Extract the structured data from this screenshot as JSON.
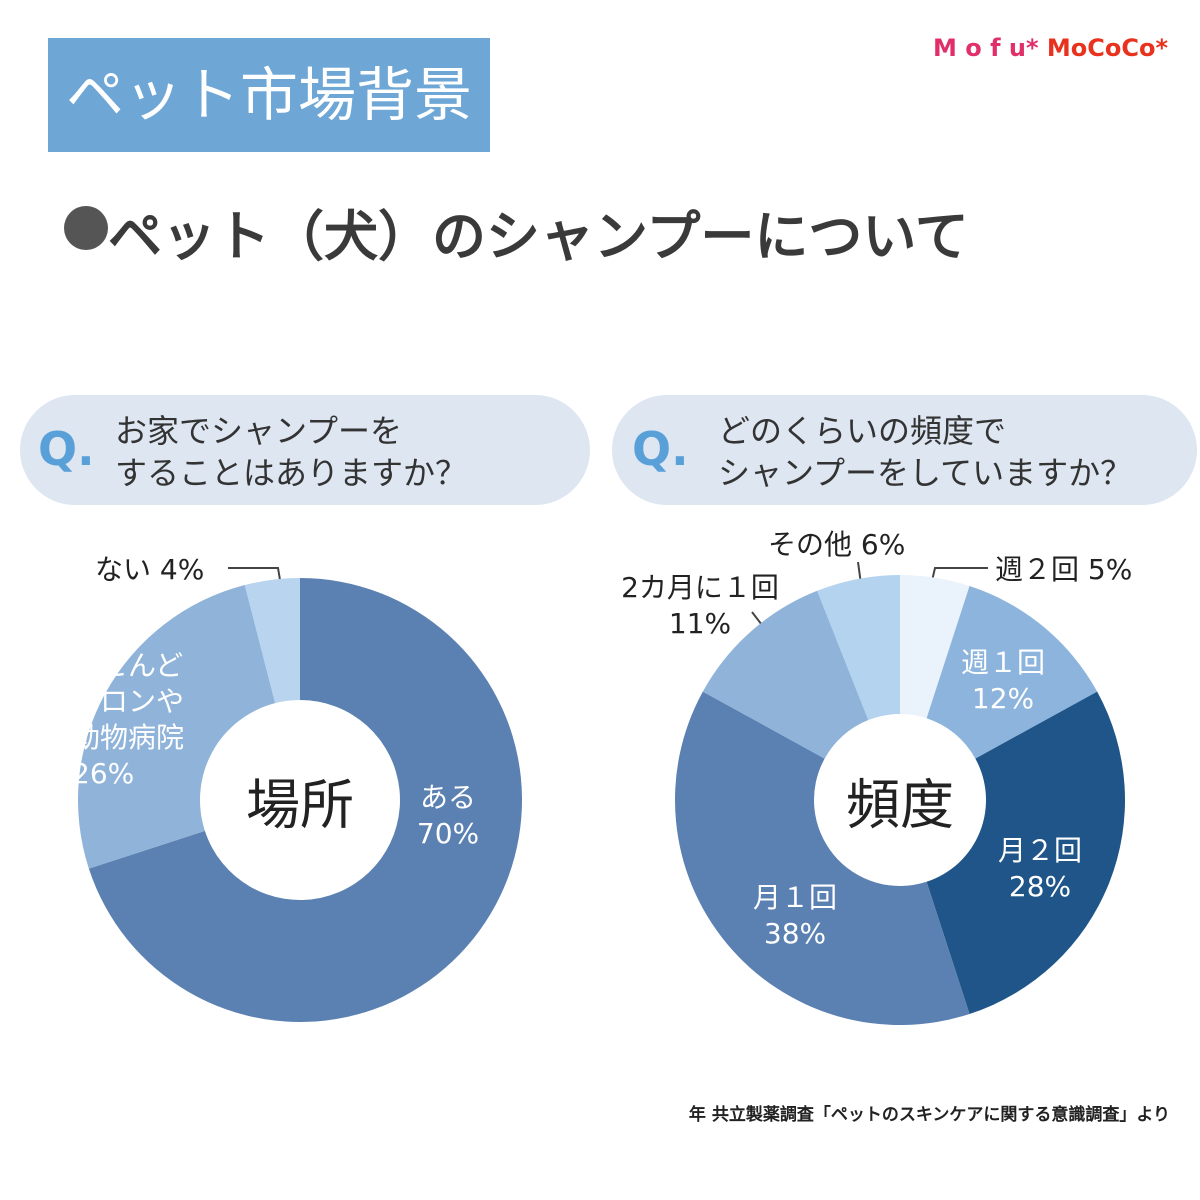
{
  "logo": {
    "part1": "M o f u*",
    "part2": "MoCoCo*"
  },
  "header": {
    "title": "ペット市場背景",
    "subtitle": "ペット（犬）のシャンプーについて"
  },
  "chart_data": [
    {
      "type": "donut",
      "question_mark": "Q.",
      "question": "お家でシャンプーを\nすることはありますか？",
      "center_label": "場所",
      "categories": [
        "ある",
        "ほとんど\nサロンや\n動物病院",
        "ない"
      ],
      "values": [
        70,
        26,
        4
      ],
      "value_labels": [
        "70%",
        "26%",
        "4%"
      ],
      "colors": [
        "#5b80b2",
        "#8fb3d9",
        "#b8d4ee"
      ]
    },
    {
      "type": "donut",
      "question_mark": "Q.",
      "question": "どのくらいの頻度で\nシャンプーをしていますか？",
      "center_label": "頻度",
      "categories": [
        "週２回",
        "週１回",
        "月２回",
        "月１回",
        "2カ月に１回",
        "その他"
      ],
      "values": [
        5,
        12,
        28,
        38,
        11,
        6
      ],
      "value_labels": [
        "5%",
        "12%",
        "28%",
        "38%",
        "11%",
        "6%"
      ],
      "colors": [
        "#eaf3fb",
        "#8cb4dc",
        "#1f5589",
        "#5b80b2",
        "#8fb3d9",
        "#b3d3ee"
      ]
    }
  ],
  "footer": "年 共立製薬調査「ペットのスキンケアに関する意識調査」より"
}
